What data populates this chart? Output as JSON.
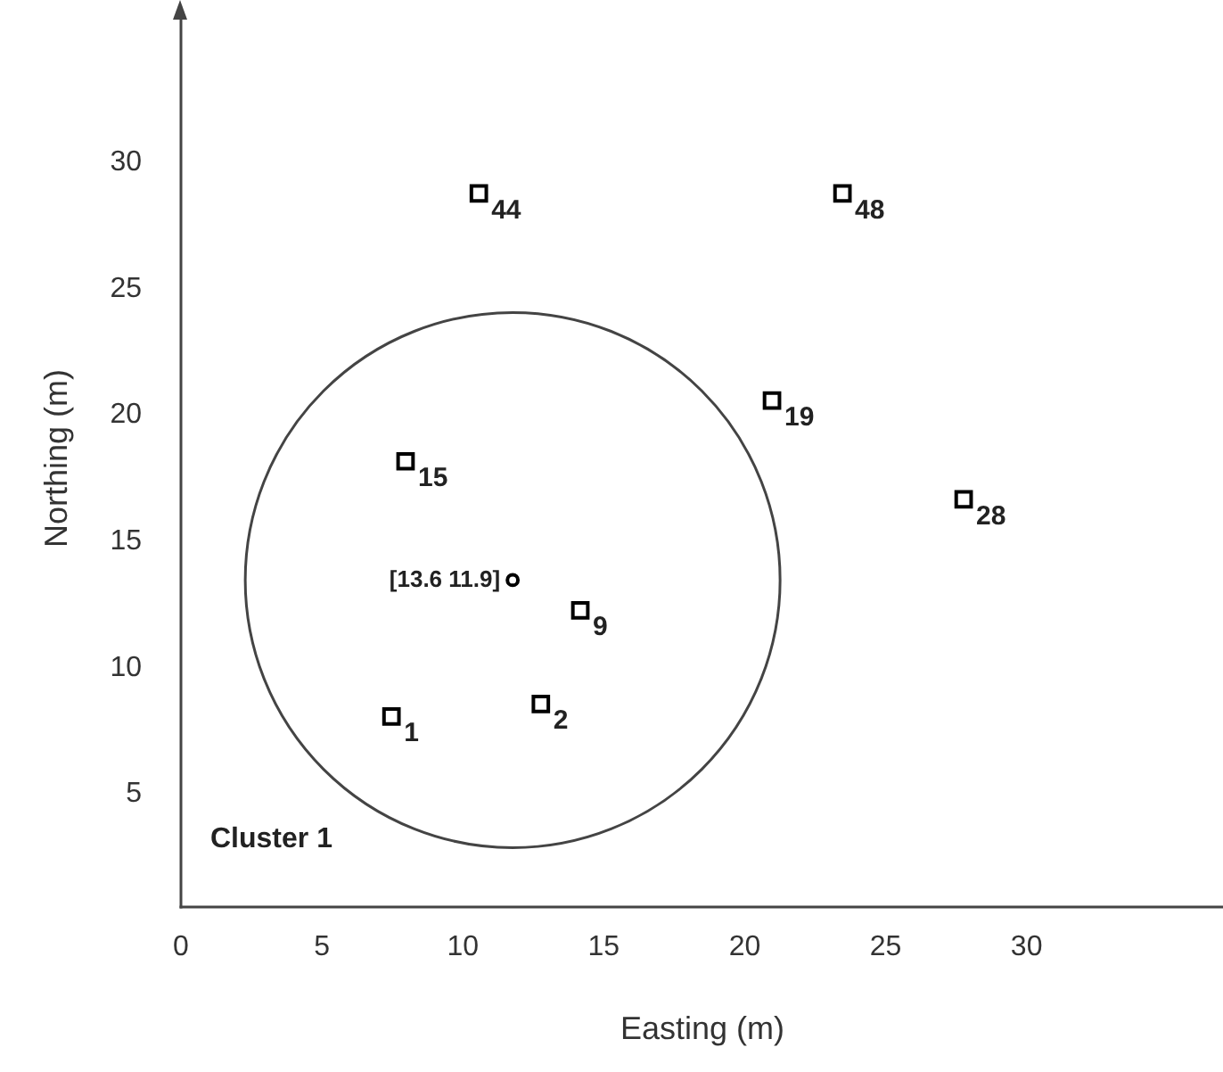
{
  "chart_data": {
    "type": "scatter",
    "xlabel": "Easting (m)",
    "ylabel": "Northing (m)",
    "xlim": [
      0,
      37
    ],
    "ylim": [
      0.5,
      36
    ],
    "xticks": [
      0,
      5,
      10,
      15,
      20,
      25,
      30
    ],
    "yticks": [
      5,
      10,
      15,
      20,
      25,
      30
    ],
    "grid": false,
    "series": [
      {
        "color": "#000000",
        "marker": "square",
        "x": [
          10.6,
          23.5,
          21.0,
          8.0,
          27.8,
          14.2,
          12.8,
          7.5
        ],
        "values": [
          28.7,
          28.7,
          20.5,
          18.1,
          16.6,
          12.2,
          8.5,
          8.0
        ]
      },
      {
        "color": "#000000",
        "marker": "circle",
        "x": [
          11.8
        ],
        "values": [
          13.4
        ]
      }
    ],
    "annotations": [
      {
        "text": "44",
        "x": 10.6,
        "y": 28.7
      },
      {
        "text": "48",
        "x": 23.5,
        "y": 28.7
      },
      {
        "text": "19",
        "x": 21.0,
        "y": 20.5
      },
      {
        "text": "15",
        "x": 8.0,
        "y": 18.1
      },
      {
        "text": "28",
        "x": 27.8,
        "y": 16.6
      },
      {
        "text": "9",
        "x": 14.2,
        "y": 12.2
      },
      {
        "text": "2",
        "x": 12.8,
        "y": 8.5
      },
      {
        "text": "1",
        "x": 7.5,
        "y": 8.0
      },
      {
        "text": "[13.6 11.9]",
        "x": 11.8,
        "y": 13.4
      },
      "Cluster 1"
    ]
  }
}
